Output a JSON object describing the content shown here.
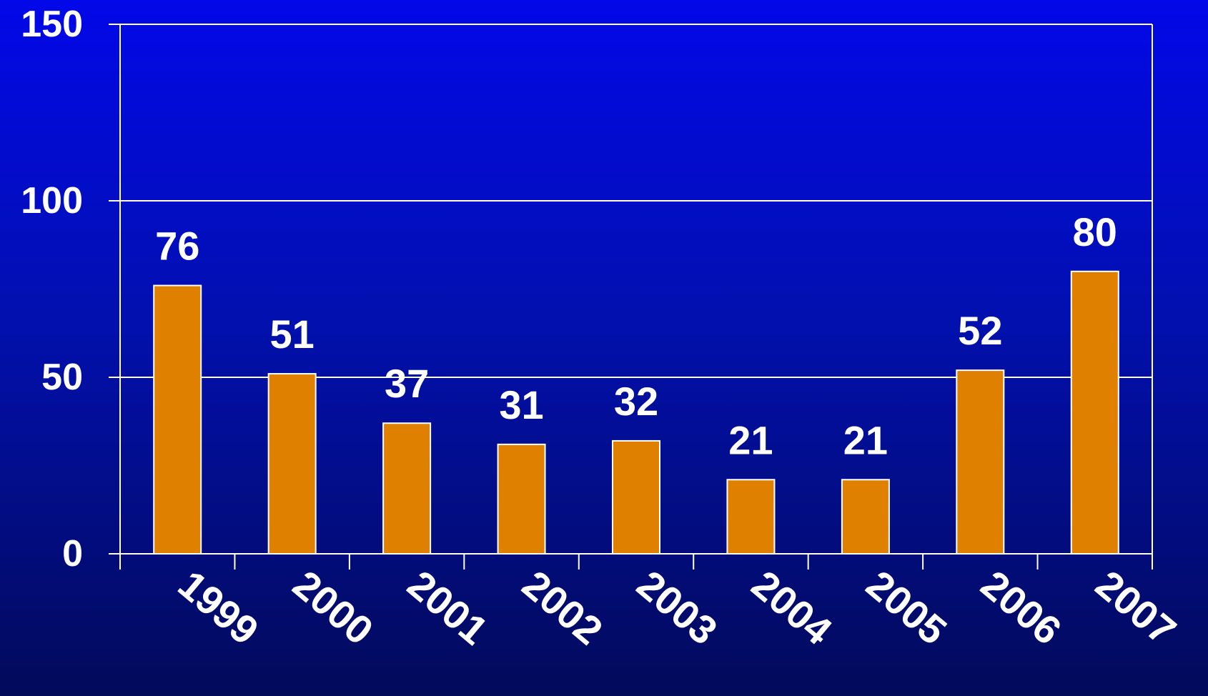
{
  "chart_data": {
    "type": "bar",
    "categories": [
      "1999",
      "2000",
      "2001",
      "2002",
      "2003",
      "2004",
      "2005",
      "2006",
      "2007"
    ],
    "values": [
      76,
      51,
      37,
      31,
      32,
      21,
      21,
      52,
      80
    ],
    "data_labels": [
      "76",
      "51",
      "37",
      "31",
      "32",
      "21",
      "21",
      "52",
      "80"
    ],
    "title": "",
    "xlabel": "",
    "ylabel": "",
    "ylim": [
      0,
      150
    ],
    "yticks": [
      0,
      50,
      100,
      150
    ],
    "ytick_labels": [
      "0",
      "50",
      "100",
      "150"
    ],
    "grid": true,
    "legend": "none",
    "colors": {
      "bar_fill": "#e08000",
      "bar_stroke": "#ffffff",
      "axis": "#ffffff",
      "text": "#ffffff",
      "background_top": "#0208e8",
      "background_bottom": "#020a5a"
    }
  }
}
